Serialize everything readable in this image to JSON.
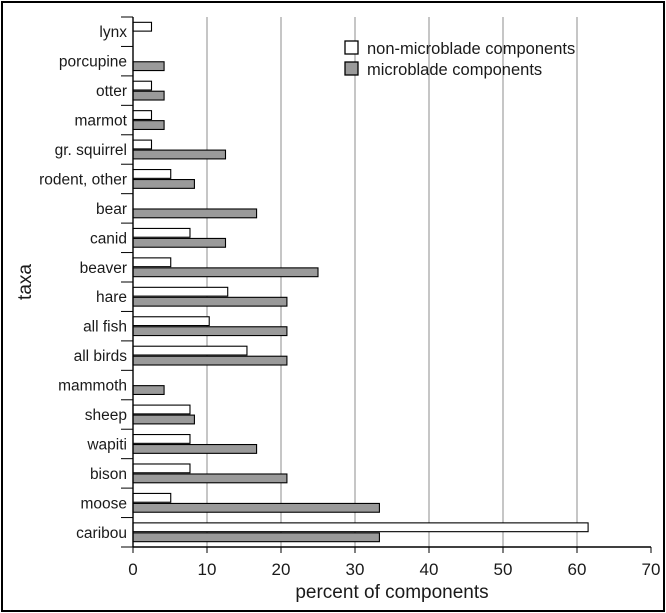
{
  "chart_data": {
    "type": "bar",
    "orientation": "horizontal",
    "categories": [
      "lynx",
      "porcupine",
      "otter",
      "marmot",
      "gr. squirrel",
      "rodent, other",
      "bear",
      "canid",
      "beaver",
      "hare",
      "all fish",
      "all birds",
      "mammoth",
      "sheep",
      "wapiti",
      "bison",
      "moose",
      "caribou"
    ],
    "series": [
      {
        "name": "non-microblade components",
        "color": "#ffffff",
        "values": [
          2.5,
          0,
          2.5,
          2.5,
          2.5,
          5.1,
          0,
          7.7,
          5.1,
          12.8,
          10.3,
          15.4,
          0,
          7.7,
          7.7,
          7.7,
          5.1,
          61.5
        ]
      },
      {
        "name": "microblade components",
        "color": "#9a9a9a",
        "values": [
          0,
          4.2,
          4.2,
          4.2,
          12.5,
          8.3,
          16.7,
          12.5,
          25.0,
          20.8,
          20.8,
          20.8,
          4.2,
          8.3,
          16.7,
          20.8,
          33.3,
          33.3
        ]
      }
    ],
    "xlabel": "percent of components",
    "ylabel": "taxa",
    "xlim": [
      0,
      70
    ],
    "xticks": [
      0,
      10,
      20,
      30,
      40,
      50,
      60,
      70
    ],
    "grid": "vertical",
    "legend_position": "top-right"
  }
}
